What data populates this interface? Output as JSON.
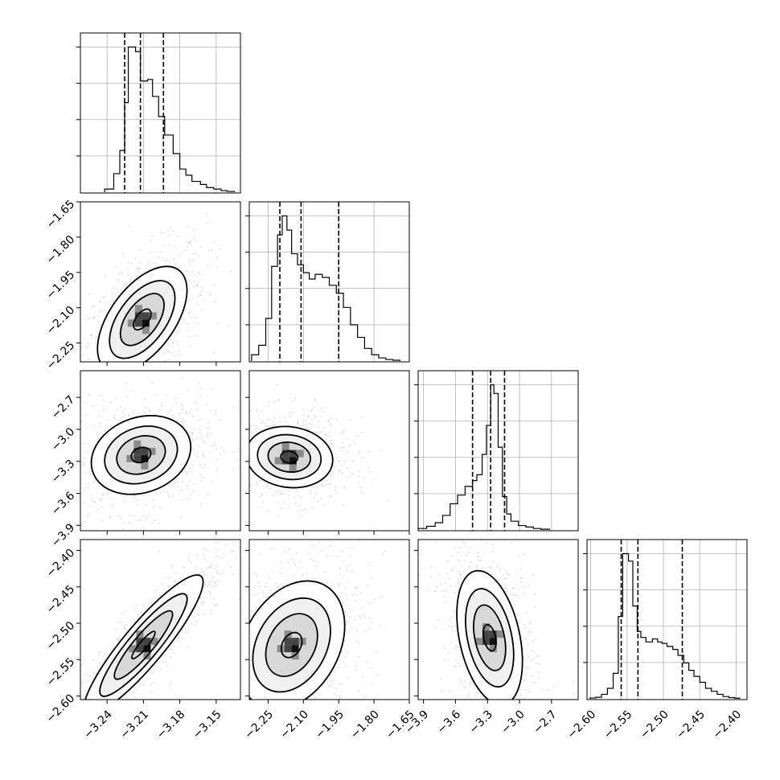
{
  "chart_data": {
    "type": "corner",
    "parameters": [
      {
        "range": [
          -3.262,
          -3.13
        ],
        "ticks": [
          -3.24,
          -3.21,
          -3.18,
          -3.15
        ],
        "tick_labels": [
          "−3.24",
          "−3.21",
          "−3.18",
          "−3.15"
        ],
        "quantiles": [
          -3.2255,
          -3.2125,
          -3.1935
        ],
        "histogram": {
          "bin_edges": [
            -3.242,
            -3.2345,
            -3.2295,
            -3.2255,
            -3.2225,
            -3.2165,
            -3.2125,
            -3.2065,
            -3.2025,
            -3.1975,
            -3.1925,
            -3.1855,
            -3.18,
            -3.175,
            -3.17,
            -3.163,
            -3.158,
            -3.152,
            -3.146,
            -3.141,
            -3.135
          ],
          "counts": [
            0.02,
            0.12,
            0.27,
            0.58,
            0.94,
            0.91,
            0.72,
            0.73,
            0.62,
            0.49,
            0.37,
            0.25,
            0.15,
            0.11,
            0.07,
            0.05,
            0.03,
            0.02,
            0.01,
            0.005
          ]
        }
      },
      {
        "range": [
          -2.33,
          -1.65
        ],
        "ticks": [
          -2.25,
          -2.1,
          -1.95,
          -1.8,
          -1.65
        ],
        "tick_labels": [
          "−2.25",
          "−2.10",
          "−1.95",
          "−1.80",
          "−1.65"
        ],
        "y_ticks": [
          -1.65,
          -1.8,
          -1.95,
          -2.1,
          -2.25
        ],
        "y_tick_labels": [
          "−1.65",
          "−1.80",
          "−1.95",
          "−2.10",
          "−2.25"
        ],
        "quantiles": [
          -2.2,
          -2.11,
          -1.95
        ],
        "histogram": {
          "bin_edges": [
            -2.32,
            -2.29,
            -2.26,
            -2.235,
            -2.21,
            -2.19,
            -2.17,
            -2.15,
            -2.125,
            -2.1,
            -2.075,
            -2.05,
            -2.02,
            -1.99,
            -1.96,
            -1.93,
            -1.9,
            -1.87,
            -1.84,
            -1.81,
            -1.78,
            -1.75,
            -1.72,
            -1.69
          ],
          "counts": [
            0.04,
            0.1,
            0.27,
            0.6,
            0.8,
            0.92,
            0.83,
            0.68,
            0.61,
            0.56,
            0.52,
            0.55,
            0.53,
            0.48,
            0.43,
            0.34,
            0.23,
            0.15,
            0.08,
            0.04,
            0.02,
            0.01,
            0.005
          ]
        }
      },
      {
        "range": [
          -3.95,
          -2.45
        ],
        "ticks": [
          -3.9,
          -3.6,
          -3.3,
          -3.0,
          -2.7
        ],
        "tick_labels": [
          "−3.9",
          "−3.6",
          "−3.3",
          "−3.0",
          "−2.7"
        ],
        "y_ticks": [
          -2.7,
          -3.0,
          -3.3,
          -3.6,
          -3.9
        ],
        "y_tick_labels": [
          "−2.7",
          "−3.0",
          "−3.3",
          "−3.6",
          "−3.9"
        ],
        "quantiles": [
          -3.44,
          -3.27,
          -3.14
        ],
        "histogram": {
          "bin_edges": [
            -3.95,
            -3.87,
            -3.79,
            -3.72,
            -3.65,
            -3.58,
            -3.51,
            -3.44,
            -3.4,
            -3.35,
            -3.31,
            -3.27,
            -3.24,
            -3.2,
            -3.16,
            -3.12,
            -3.08,
            -3.01,
            -2.94,
            -2.87,
            -2.8,
            -2.72
          ],
          "counts": [
            0.01,
            0.025,
            0.05,
            0.1,
            0.18,
            0.24,
            0.3,
            0.34,
            0.38,
            0.52,
            0.72,
            1.0,
            0.94,
            0.57,
            0.23,
            0.11,
            0.06,
            0.03,
            0.02,
            0.01,
            0.005
          ]
        }
      },
      {
        "range": [
          -2.605,
          -2.385
        ],
        "ticks": [
          -2.6,
          -2.55,
          -2.5,
          -2.45,
          -2.4
        ],
        "tick_labels": [
          "−2.60",
          "−2.55",
          "−2.50",
          "−2.45",
          "−2.40"
        ],
        "y_ticks": [
          -2.4,
          -2.45,
          -2.5,
          -2.55,
          -2.6
        ],
        "y_tick_labels": [
          "−2.40",
          "−2.45",
          "−2.50",
          "−2.55",
          "−2.60"
        ],
        "quantiles": [
          -2.558,
          -2.535,
          -2.474
        ],
        "histogram": {
          "bin_edges": [
            -2.601,
            -2.593,
            -2.585,
            -2.577,
            -2.569,
            -2.562,
            -2.556,
            -2.548,
            -2.542,
            -2.536,
            -2.531,
            -2.524,
            -2.515,
            -2.508,
            -2.502,
            -2.495,
            -2.487,
            -2.48,
            -2.472,
            -2.465,
            -2.458,
            -2.45,
            -2.442,
            -2.434,
            -2.426,
            -2.418,
            -2.41,
            -2.402,
            -2.395
          ],
          "counts": [
            0.005,
            0.01,
            0.03,
            0.07,
            0.17,
            0.55,
            0.97,
            0.92,
            0.62,
            0.45,
            0.41,
            0.38,
            0.4,
            0.38,
            0.37,
            0.35,
            0.33,
            0.29,
            0.24,
            0.19,
            0.15,
            0.11,
            0.07,
            0.05,
            0.03,
            0.015,
            0.008,
            0.004
          ]
        }
      }
    ],
    "joint_distributions": [
      {
        "row": 1,
        "col": 0,
        "center": [
          -3.211,
          -2.15
        ],
        "sd": [
          0.018,
          0.11
        ],
        "corr": 0.55,
        "mode_weight": 0.85
      },
      {
        "row": 2,
        "col": 0,
        "center": [
          -3.212,
          -3.24
        ],
        "sd": [
          0.02,
          0.18
        ],
        "corr": 0.2,
        "mode_weight": 0.7
      },
      {
        "row": 3,
        "col": 0,
        "center": [
          -3.21,
          -2.53
        ],
        "sd": [
          0.024,
          0.047
        ],
        "corr": 0.9,
        "mode_weight": 0.7
      },
      {
        "row": 2,
        "col": 1,
        "center": [
          -2.16,
          -3.26
        ],
        "sd": [
          0.09,
          0.14
        ],
        "corr": -0.1,
        "mode_weight": 0.7
      },
      {
        "row": 3,
        "col": 1,
        "center": [
          -2.15,
          -2.53
        ],
        "sd": [
          0.11,
          0.043
        ],
        "corr": 0.3,
        "mode_weight": 0.6
      },
      {
        "row": 3,
        "col": 2,
        "center": [
          -3.28,
          -2.52
        ],
        "sd": [
          0.15,
          0.045
        ],
        "corr": -0.35,
        "mode_weight": 0.75
      }
    ],
    "grid": true,
    "contour_levels": 3
  }
}
